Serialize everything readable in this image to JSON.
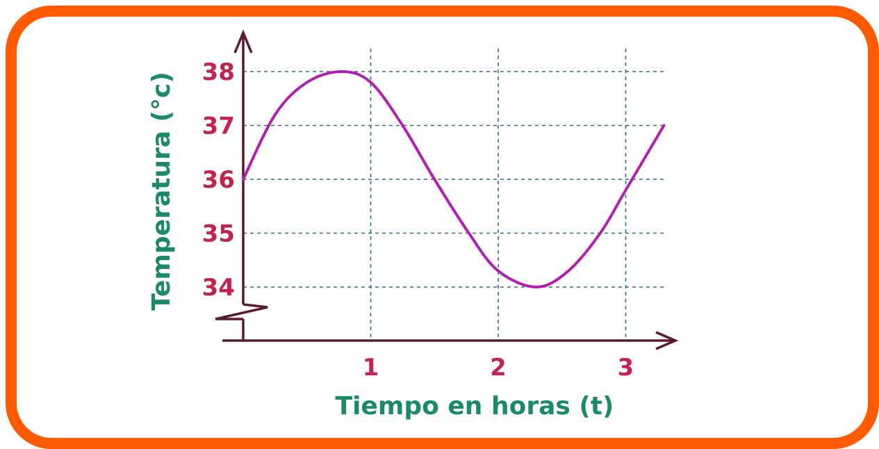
{
  "colors": {
    "frame": "#ff5a00",
    "axis": "#5b1a2b",
    "grid": "#2f6b7f",
    "curve": "#b020b0",
    "tick_label": "#c0244f",
    "axis_title": "#1b8a6b"
  },
  "chart_data": {
    "type": "line",
    "title": "",
    "xlabel": "Tiempo en horas (t)",
    "ylabel": "Temperatura (°c)",
    "x_ticks": [
      "1",
      "2",
      "3"
    ],
    "y_ticks": [
      "34",
      "35",
      "36",
      "37",
      "38"
    ],
    "xlim": [
      0,
      3.3
    ],
    "ylim": [
      34,
      38
    ],
    "grid": true,
    "y_axis_break": true,
    "series": [
      {
        "x": [
          0,
          0.25,
          0.5,
          0.77,
          1.0,
          1.25,
          1.5,
          1.77,
          2.0,
          2.3,
          2.55,
          2.8,
          3.0,
          3.3
        ],
        "y": [
          36.0,
          37.2,
          37.8,
          38.0,
          37.8,
          37.0,
          36.0,
          35.0,
          34.3,
          34.0,
          34.3,
          35.0,
          35.8,
          37.0
        ]
      }
    ]
  }
}
